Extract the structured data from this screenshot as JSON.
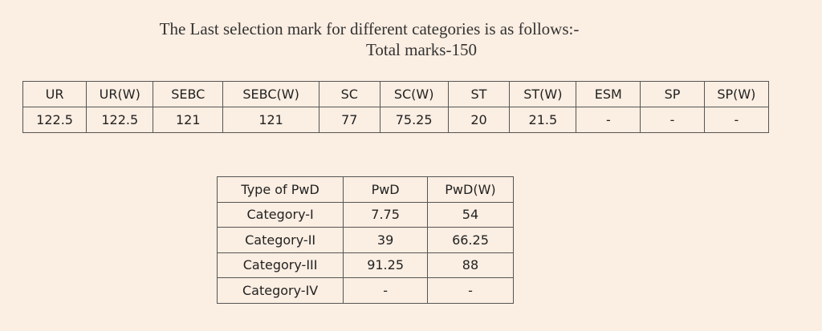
{
  "header": {
    "title": "The Last selection mark for different categories is as follows:-",
    "subtitle": "Total marks-150"
  },
  "category_table": {
    "columns": [
      "UR",
      "UR(W)",
      "SEBC",
      "SEBC(W)",
      "SC",
      "SC(W)",
      "ST",
      "ST(W)",
      "ESM",
      "SP",
      "SP(W)"
    ],
    "rows": [
      [
        "122.5",
        "122.5",
        "121",
        "121",
        "77",
        "75.25",
        "20",
        "21.5",
        "-",
        "-",
        "-"
      ]
    ]
  },
  "pwd_table": {
    "columns": [
      "Type of PwD",
      "PwD",
      "PwD(W)"
    ],
    "rows": [
      [
        "Category-I",
        "7.75",
        "54"
      ],
      [
        "Category-II",
        "39",
        "66.25"
      ],
      [
        "Category-III",
        "91.25",
        "88"
      ],
      [
        "Category-IV",
        "-",
        "-"
      ]
    ]
  }
}
